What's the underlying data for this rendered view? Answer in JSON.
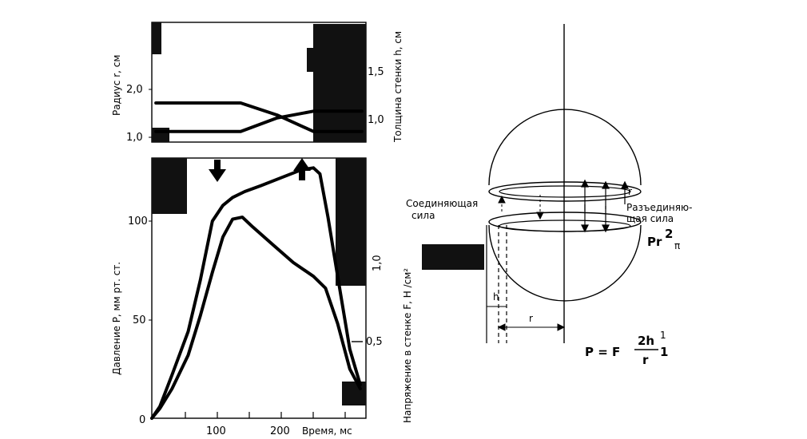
{
  "chart_data": [
    {
      "type": "line",
      "ylabel": "Радиус r, см",
      "ylabel_right": "Толщина стенки h, см",
      "yticks_left": [
        "1,0",
        "2,0"
      ],
      "yticks_right": [
        "1,0",
        "1,5"
      ],
      "xlim": [
        0,
        265
      ],
      "ylim": [
        0.82,
        3.3
      ],
      "ylim_right": [
        0.82,
        1.9
      ],
      "series": [
        {
          "x": [
            5,
            30,
            110,
            155,
            200,
            225,
            230,
            260
          ],
          "y": [
            1.04,
            1.04,
            1.04,
            1.32,
            1.46,
            1.46,
            1.46,
            1.46
          ]
        },
        {
          "x": [
            5,
            30,
            110,
            155,
            200,
            225,
            230,
            260
          ],
          "y": [
            1.63,
            1.63,
            1.63,
            1.38,
            1.04,
            1.04,
            1.04,
            1.04
          ]
        }
      ]
    },
    {
      "type": "line",
      "xlabel": "Время, мс",
      "ylabel": "Давление P, мм рт. ст.",
      "ylabel_right": "Напряжение в стенке F,  H /см²",
      "xticks": [
        "100",
        "200"
      ],
      "yticks_left": [
        "0",
        "50",
        "100"
      ],
      "yticks_right": [
        "0,5",
        "1,0"
      ],
      "xlim": [
        0,
        265
      ],
      "ylim": [
        0,
        132
      ],
      "series": [
        {
          "x": [
            0,
            10,
            25,
            45,
            60,
            75,
            88,
            100,
            115,
            135,
            160,
            185,
            200,
            208,
            218,
            230,
            245,
            258
          ],
          "y": [
            0,
            6,
            22,
            44,
            70,
            100,
            108,
            112,
            115,
            118,
            122,
            126,
            127,
            124,
            102,
            72,
            35,
            17
          ]
        },
        {
          "x": [
            0,
            10,
            25,
            45,
            60,
            75,
            88,
            100,
            112,
            125,
            150,
            175,
            200,
            215,
            230,
            245,
            258
          ],
          "y": [
            0,
            5,
            15,
            32,
            52,
            74,
            92,
            101,
            102,
            97,
            88,
            79,
            72,
            66,
            48,
            25,
            15
          ]
        }
      ],
      "annotations": [
        "down-arrow",
        "up-arrow"
      ]
    }
  ],
  "diagram": {
    "label_connecting": [
      "Соединяющая",
      "сила"
    ],
    "label_separating": [
      "Разъединяю-",
      "щая сила"
    ],
    "label_h": "h",
    "label_r": "r",
    "label_r_small": "r",
    "label_pr2": "Pr",
    "label_pr2_exp": "2",
    "label_pr2_sub": "π",
    "formula": {
      "lhs": "P = F",
      "num": "2h",
      "den": "r",
      "sup": "1",
      "tail": "1"
    }
  },
  "colors": {
    "ink": "#000000",
    "paper": "#ffffff",
    "smudge": "#111111"
  }
}
